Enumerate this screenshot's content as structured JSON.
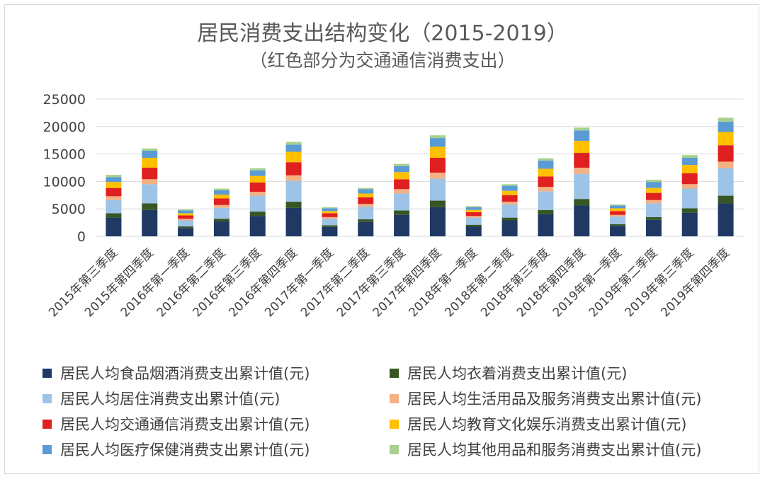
{
  "chart_data": {
    "type": "bar",
    "stacked": true,
    "title": "居民消费支出结构变化（2015-2019）",
    "subtitle": "（红色部分为交通通信消费支出）",
    "ylim": [
      0,
      25000
    ],
    "yticks": [
      "0",
      "5000",
      "10000",
      "15000",
      "20000",
      "25000"
    ],
    "grid": true,
    "legend_position": "bottom",
    "categories": [
      "2015年第三季度",
      "2015年第四季度",
      "2016年第一季度",
      "2016年第二季度",
      "2016年第三季度",
      "2016年第四季度",
      "2017年第一季度",
      "2017年第二季度",
      "2017年第三季度",
      "2017年第四季度",
      "2018年第一季度",
      "2018年第二季度",
      "2018年第三季度",
      "2018年第四季度",
      "2019年第一季度",
      "2019年第二季度",
      "2019年第三季度",
      "2019年第四季度"
    ],
    "series": [
      {
        "name": "居民人均食品烟酒消费支出累计值(元)",
        "color": "#1f3864",
        "values": [
          3400,
          4800,
          1500,
          2700,
          3700,
          5200,
          1700,
          2600,
          3900,
          5300,
          1800,
          2900,
          4000,
          5600,
          1900,
          3000,
          4300,
          6000
        ]
      },
      {
        "name": "居民人均衣着消费支出累计值(元)",
        "color": "#375623",
        "values": [
          800,
          1200,
          300,
          500,
          800,
          1100,
          300,
          500,
          800,
          1200,
          300,
          500,
          800,
          1200,
          300,
          500,
          800,
          1400
        ]
      },
      {
        "name": "居民人均居住消费支出累计值(元)",
        "color": "#9dc3e6",
        "values": [
          2400,
          3500,
          1100,
          2000,
          2900,
          3800,
          1200,
          2300,
          3100,
          4000,
          1300,
          2400,
          3400,
          4600,
          1400,
          2500,
          3600,
          5000
        ]
      },
      {
        "name": "居民人均生活用品及服务消费支出累计值(元)",
        "color": "#f4b183",
        "values": [
          700,
          900,
          300,
          500,
          700,
          1000,
          300,
          500,
          800,
          1100,
          300,
          500,
          800,
          1100,
          300,
          600,
          800,
          1200
        ]
      },
      {
        "name": "居民人均交通通信消费支出累计值(元)",
        "color": "#e02020",
        "values": [
          1500,
          2100,
          600,
          1200,
          1700,
          2400,
          700,
          1200,
          1800,
          2700,
          700,
          1200,
          1900,
          2700,
          700,
          1300,
          2000,
          3000
        ]
      },
      {
        "name": "居民人均教育文化娱乐消费支出累计值(元)",
        "color": "#ffc000",
        "values": [
          1100,
          1800,
          400,
          700,
          1200,
          1900,
          400,
          700,
          1300,
          2000,
          400,
          800,
          1400,
          2200,
          500,
          900,
          1500,
          2400
        ]
      },
      {
        "name": "居民人均医疗保健消费支出累计值(元)",
        "color": "#5b9bd5",
        "values": [
          900,
          1300,
          500,
          800,
          1000,
          1300,
          500,
          800,
          1100,
          1600,
          500,
          900,
          1500,
          1900,
          500,
          1100,
          1300,
          1900
        ]
      },
      {
        "name": "居民人均其他用品和服务消费支出累计值(元)",
        "color": "#a9d18e",
        "values": [
          400,
          400,
          200,
          300,
          400,
          500,
          200,
          200,
          400,
          500,
          200,
          300,
          400,
          500,
          200,
          400,
          500,
          700
        ]
      }
    ]
  }
}
